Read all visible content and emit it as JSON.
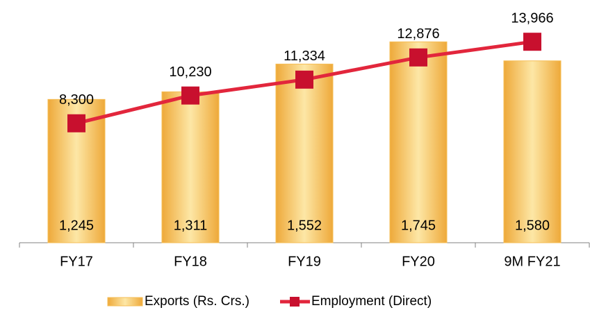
{
  "chart_data": {
    "type": "bar",
    "categories": [
      "FY17",
      "FY18",
      "FY19",
      "FY20",
      "9M FY21"
    ],
    "series": [
      {
        "name": "Exports (Rs. Crs.)",
        "type": "bar",
        "color": "#f5bd55",
        "values": [
          1245,
          1311,
          1552,
          1745,
          1580
        ],
        "value_labels": [
          "1,245",
          "1,311",
          "1,552",
          "1,745",
          "1,580"
        ]
      },
      {
        "name": "Employment (Direct)",
        "type": "line",
        "axis": "y2",
        "color": "#e2263c",
        "marker_color": "#c8102e",
        "values": [
          8300,
          10230,
          11334,
          12876,
          13966
        ],
        "value_labels": [
          "8,300",
          "10,230",
          "11,334",
          "12,876",
          "13,966"
        ]
      }
    ],
    "ylim": [
      0,
      2000
    ],
    "y2lim": [
      0,
      16000
    ]
  }
}
